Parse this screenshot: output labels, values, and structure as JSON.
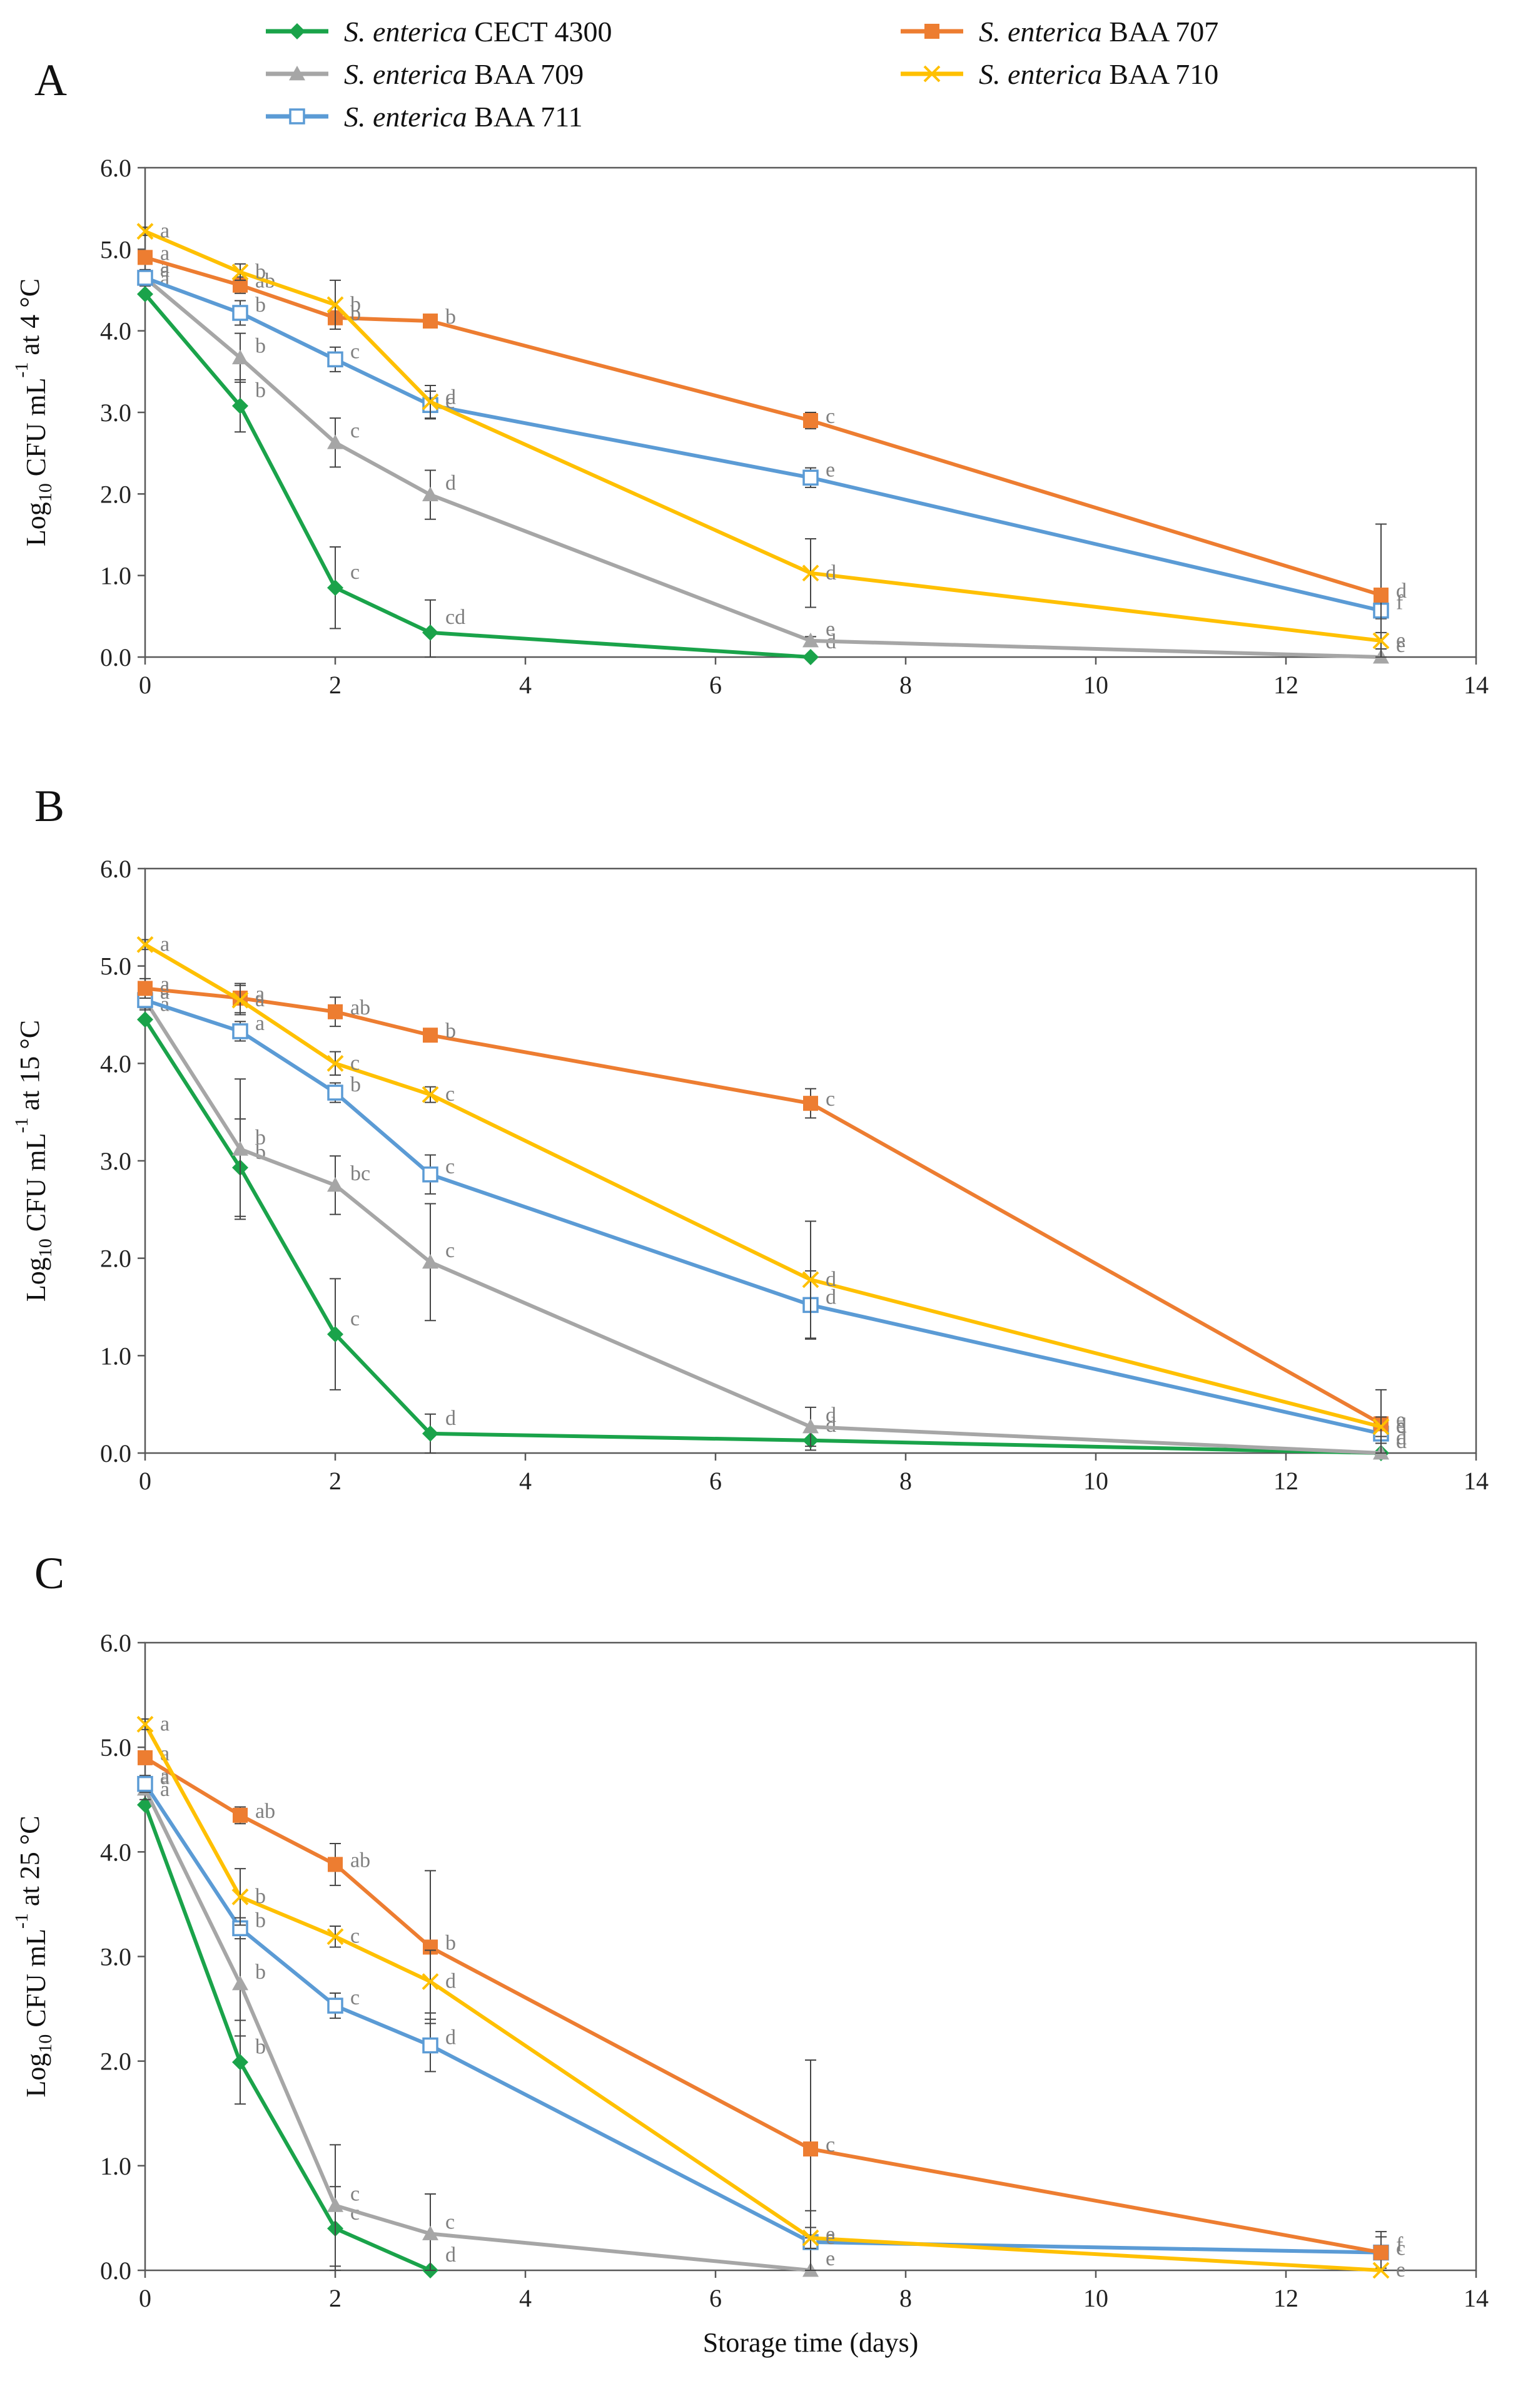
{
  "legend": [
    {
      "species": "S. enterica",
      "strain": "CECT 4300",
      "color": "#1aa34a",
      "marker": "diamond"
    },
    {
      "species": "S. enterica",
      "strain": "BAA 709",
      "color": "#a6a6a6",
      "marker": "triangle"
    },
    {
      "species": "S. enterica",
      "strain": "BAA 711",
      "color": "#5b9bd5",
      "marker": "open-square"
    },
    {
      "species": "S. enterica",
      "strain": "BAA 707",
      "color": "#ed7d31",
      "marker": "square"
    },
    {
      "species": "S. enterica",
      "strain": "BAA 710",
      "color": "#ffc000",
      "marker": "x"
    }
  ],
  "chart_data": [
    {
      "panel": "A",
      "type": "line",
      "ylabel": "Log10 CFU mL-1 at 4 °C",
      "ylabel_parts": {
        "pre": "Log",
        "sub": "10",
        "mid": " CFU mL",
        "sup": "-1",
        "post": " at 4 °C"
      },
      "xlabel": "",
      "xlim": [
        0,
        14
      ],
      "ylim": [
        0,
        6
      ],
      "xticks": [
        "0",
        "2",
        "4",
        "6",
        "8",
        "10",
        "12",
        "14"
      ],
      "yticks": [
        "0.0",
        "1.0",
        "2.0",
        "3.0",
        "4.0",
        "5.0",
        "6.0"
      ],
      "series": [
        {
          "name": "S. enterica CECT 4300",
          "x": [
            0,
            1,
            2,
            3,
            7
          ],
          "y": [
            4.45,
            3.08,
            0.85,
            0.3,
            0.0
          ],
          "err": [
            0,
            0.32,
            0.5,
            0.4,
            0
          ],
          "letters": [
            "a",
            "b",
            "c",
            "cd",
            "d"
          ]
        },
        {
          "name": "S. enterica BAA 709",
          "x": [
            0,
            1,
            2,
            3,
            7,
            13
          ],
          "y": [
            4.65,
            3.67,
            2.63,
            1.99,
            0.2,
            0.0
          ],
          "err": [
            0.1,
            0.3,
            0.3,
            0.3,
            0.05,
            0
          ],
          "letters": [
            "a",
            "b",
            "c",
            "d",
            "e",
            "e"
          ]
        },
        {
          "name": "S. enterica BAA 711",
          "x": [
            0,
            1,
            2,
            3,
            7,
            13
          ],
          "y": [
            4.65,
            4.22,
            3.65,
            3.09,
            2.2,
            0.57
          ],
          "err": [
            0.08,
            0.15,
            0.15,
            0.17,
            0.12,
            0.1
          ],
          "letters": [
            "a",
            "b",
            "c",
            "d",
            "e",
            "f"
          ]
        },
        {
          "name": "S. enterica BAA 707",
          "x": [
            0,
            1,
            2,
            3,
            7,
            13
          ],
          "y": [
            4.9,
            4.56,
            4.16,
            4.12,
            2.9,
            0.76
          ],
          "err": [
            0.05,
            0.1,
            0.08,
            0.05,
            0.1,
            0.87
          ],
          "letters": [
            "a",
            "ab",
            "b",
            "b",
            "c",
            "d"
          ]
        },
        {
          "name": "S. enterica BAA 710",
          "x": [
            0,
            1,
            2,
            3,
            7,
            13
          ],
          "y": [
            5.22,
            4.72,
            4.32,
            3.13,
            1.03,
            0.2
          ],
          "err": [
            0.05,
            0.1,
            0.3,
            0.2,
            0.42,
            0.1
          ],
          "letters": [
            "a",
            "b",
            "b",
            "c",
            "d",
            "e"
          ]
        }
      ]
    },
    {
      "panel": "B",
      "type": "line",
      "ylabel": "Log10 CFU mL-1 at 15 °C",
      "ylabel_parts": {
        "pre": "Log",
        "sub": "10",
        "mid": " CFU mL",
        "sup": "-1",
        "post": " at 15 °C"
      },
      "xlabel": "",
      "xlim": [
        0,
        14
      ],
      "ylim": [
        0,
        6
      ],
      "xticks": [
        "0",
        "2",
        "4",
        "6",
        "8",
        "10",
        "12",
        "14"
      ],
      "yticks": [
        "0.0",
        "1.0",
        "2.0",
        "3.0",
        "4.0",
        "5.0",
        "6.0"
      ],
      "series": [
        {
          "name": "S. enterica CECT 4300",
          "x": [
            0,
            1,
            2,
            3,
            7,
            13
          ],
          "y": [
            4.45,
            2.93,
            1.22,
            0.2,
            0.13,
            0.0
          ],
          "err": [
            0,
            0.5,
            0.57,
            0.2,
            0.1,
            0
          ],
          "letters": [
            "a",
            "b",
            "c",
            "d",
            "d",
            "d"
          ]
        },
        {
          "name": "S. enterica BAA 709",
          "x": [
            0,
            1,
            2,
            3,
            7,
            13
          ],
          "y": [
            4.65,
            3.12,
            2.75,
            1.96,
            0.27,
            0.0
          ],
          "err": [
            0.1,
            0.72,
            0.3,
            0.6,
            0.2,
            0
          ],
          "letters": [
            "a",
            "b",
            "bc",
            "c",
            "d",
            "d"
          ]
        },
        {
          "name": "S. enterica BAA 711",
          "x": [
            0,
            1,
            2,
            3,
            7,
            13
          ],
          "y": [
            4.65,
            4.33,
            3.7,
            2.86,
            1.52,
            0.2
          ],
          "err": [
            0.08,
            0.1,
            0.1,
            0.2,
            0.35,
            0.1
          ],
          "letters": [
            "a",
            "a",
            "b",
            "c",
            "d",
            "d"
          ]
        },
        {
          "name": "S. enterica BAA 707",
          "x": [
            0,
            1,
            2,
            3,
            7,
            13
          ],
          "y": [
            4.77,
            4.67,
            4.53,
            4.29,
            3.59,
            0.3
          ],
          "err": [
            0.1,
            0.15,
            0.15,
            0.05,
            0.15,
            0.35
          ],
          "letters": [
            "a",
            "a",
            "ab",
            "b",
            "c",
            "e"
          ]
        },
        {
          "name": "S. enterica BAA 710",
          "x": [
            0,
            1,
            2,
            3,
            7,
            13
          ],
          "y": [
            5.22,
            4.65,
            4.0,
            3.68,
            1.78,
            0.27
          ],
          "err": [
            0.05,
            0.15,
            0.12,
            0.08,
            0.6,
            0.1
          ],
          "letters": [
            "a",
            "a",
            "c",
            "c",
            "d",
            "e"
          ]
        }
      ]
    },
    {
      "panel": "C",
      "type": "line",
      "ylabel": "Log10 CFU mL-1 at 25 °C",
      "ylabel_parts": {
        "pre": "Log",
        "sub": "10",
        "mid": " CFU mL",
        "sup": "-1",
        "post": " at 25 °C"
      },
      "xlabel": "Storage time (days)",
      "xlim": [
        0,
        14
      ],
      "ylim": [
        0,
        6
      ],
      "xticks": [
        "0",
        "2",
        "4",
        "6",
        "8",
        "10",
        "12",
        "14"
      ],
      "yticks": [
        "0.0",
        "1.0",
        "2.0",
        "3.0",
        "4.0",
        "5.0",
        "6.0"
      ],
      "series": [
        {
          "name": "S. enterica CECT 4300",
          "x": [
            0,
            1,
            2,
            3
          ],
          "y": [
            4.45,
            1.99,
            0.4,
            0.0
          ],
          "err": [
            0,
            0.4,
            0.4,
            0
          ],
          "letters": [
            "a",
            "b",
            "c",
            "d"
          ]
        },
        {
          "name": "S. enterica BAA 709",
          "x": [
            0,
            1,
            2,
            3,
            7
          ],
          "y": [
            4.6,
            2.74,
            0.62,
            0.35,
            0.0
          ],
          "err": [
            0.1,
            0.5,
            0.58,
            0.38,
            0
          ],
          "letters": [
            "a",
            "b",
            "c",
            "c",
            "e"
          ]
        },
        {
          "name": "S. enterica BAA 711",
          "x": [
            0,
            1,
            2,
            3,
            7,
            13
          ],
          "y": [
            4.65,
            3.27,
            2.53,
            2.15,
            0.27,
            0.17
          ],
          "err": [
            0.08,
            0.1,
            0.12,
            0.25,
            0.3,
            0.15
          ],
          "letters": [
            "a",
            "b",
            "c",
            "d",
            "e",
            "f"
          ]
        },
        {
          "name": "S. enterica BAA 707",
          "x": [
            0,
            1,
            2,
            3,
            7,
            13
          ],
          "y": [
            4.9,
            4.35,
            3.88,
            3.09,
            1.16,
            0.17
          ],
          "err": [
            0.05,
            0.08,
            0.2,
            0.73,
            0.85,
            0.2
          ],
          "letters": [
            "a",
            "ab",
            "ab",
            "b",
            "c",
            "c"
          ]
        },
        {
          "name": "S. enterica BAA 710",
          "x": [
            0,
            1,
            2,
            3,
            7,
            13
          ],
          "y": [
            5.22,
            3.57,
            3.19,
            2.76,
            0.31,
            0.0
          ],
          "err": [
            0.05,
            0.27,
            0.1,
            0.3,
            0.1,
            0
          ],
          "letters": [
            "a",
            "b",
            "c",
            "d",
            "e",
            "e"
          ]
        }
      ]
    }
  ]
}
